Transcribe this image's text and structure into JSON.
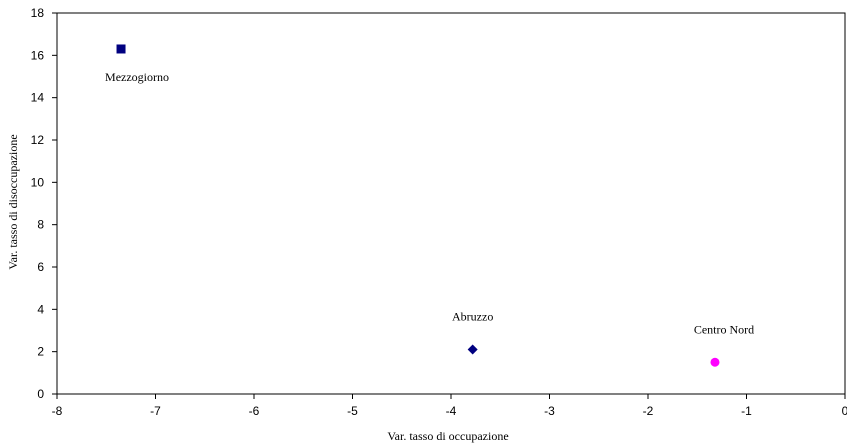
{
  "chart_data": {
    "type": "scatter",
    "title": "",
    "xlabel": "Var. tasso di occupazione",
    "ylabel": "Var. tasso di disoccupazione",
    "xlim": [
      -8,
      0
    ],
    "ylim": [
      0,
      18
    ],
    "x_ticks": [
      "-8",
      "-7",
      "-6",
      "-5",
      "-4",
      "-3",
      "-2",
      "-1",
      "0"
    ],
    "y_ticks": [
      "0",
      "2",
      "4",
      "6",
      "8",
      "10",
      "12",
      "14",
      "16",
      "18"
    ],
    "grid": false,
    "legend": "none",
    "points": [
      {
        "label": "Mezzogiorno",
        "x": -7.35,
        "y": 16.3,
        "marker": "square",
        "color": "#000080"
      },
      {
        "label": "Abruzzo",
        "x": -3.78,
        "y": 2.1,
        "marker": "diamond",
        "color": "#000080"
      },
      {
        "label": "Centro Nord",
        "x": -1.32,
        "y": 1.5,
        "marker": "circle",
        "color": "#ff00ff"
      }
    ]
  }
}
